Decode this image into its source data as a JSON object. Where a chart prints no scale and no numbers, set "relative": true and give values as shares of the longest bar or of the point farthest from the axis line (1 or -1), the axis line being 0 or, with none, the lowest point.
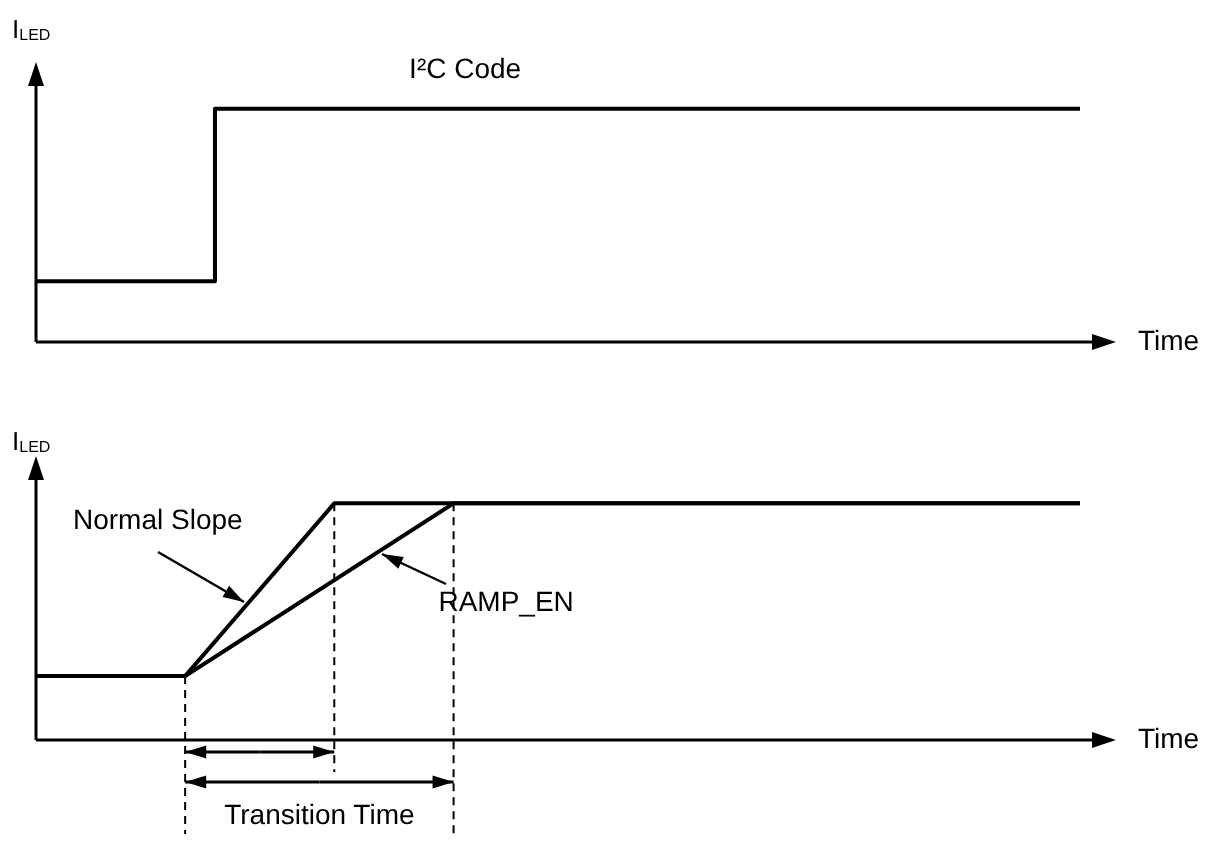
{
  "chart_data": [
    {
      "type": "step",
      "relative": true,
      "ylabel": "I$_{LED}$",
      "xlabel": "Time",
      "categories": [
        null,
        null,
        null,
        null,
        null,
        null,
        null,
        null,
        null,
        null,
        null,
        null,
        null,
        null,
        null,
        null,
        null,
        null,
        null,
        null,
        null,
        null,
        null,
        null,
        null,
        null,
        null,
        null,
        null,
        null,
        null,
        null,
        null,
        null,
        null,
        null
      ],
      "series": [
        {
          "name": "I²C Code",
          "color": "#000000",
          "values": [
            0.26,
            0.26,
            0.26,
            0.26,
            0.26,
            0.26,
            1,
            1,
            1,
            1,
            1,
            1,
            1,
            1,
            1,
            1,
            1,
            1,
            1,
            1,
            1,
            1,
            1,
            1,
            1,
            1,
            1,
            1,
            1,
            1,
            1,
            1,
            1,
            1,
            1,
            1
          ]
        }
      ]
    },
    {
      "type": "line",
      "relative": true,
      "ylabel": "I$_{LED}$",
      "xlabel": "Time",
      "annotations": [
        "Transition Time"
      ],
      "categories": [
        null,
        null,
        null,
        null,
        null,
        null,
        null,
        null,
        null,
        null,
        null,
        null,
        null,
        null,
        null,
        null,
        null,
        null,
        null,
        null,
        null,
        null,
        null,
        null,
        null,
        null,
        null,
        null,
        null,
        null,
        null,
        null,
        null,
        null,
        null,
        null
      ],
      "series": [
        {
          "name": "Normal Slope",
          "color": "#000000",
          "values": [
            0.27,
            0.27,
            0.27,
            0.27,
            0.27,
            0.27,
            null,
            null,
            null,
            null,
            1,
            1,
            1,
            1,
            1,
            1,
            1,
            1,
            1,
            1,
            1,
            1,
            1,
            1,
            1,
            1,
            1,
            1,
            1,
            1,
            1,
            1,
            1,
            1,
            1,
            1
          ]
        },
        {
          "name": "RAMP_EN",
          "color": "#000000",
          "values": [
            0.27,
            0.27,
            0.27,
            0.27,
            0.27,
            0.27,
            null,
            null,
            null,
            null,
            null,
            null,
            null,
            null,
            1,
            1,
            1,
            1,
            1,
            1,
            1,
            1,
            1,
            1,
            1,
            1,
            1,
            1,
            1,
            1,
            1,
            1,
            1,
            1,
            1,
            1
          ]
        }
      ]
    }
  ]
}
